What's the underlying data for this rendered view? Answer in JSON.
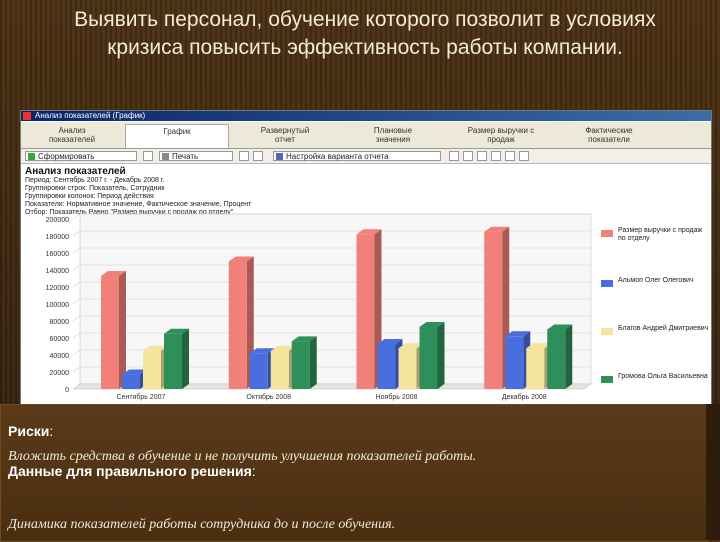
{
  "slide": {
    "title_line1": "Выявить персонал, обучение которого позволит в условиях",
    "title_line2": "кризиса повысить эффективность работы компании."
  },
  "window": {
    "title": "Анализ показателей (График)"
  },
  "tabs": [
    {
      "label": "Анализ\nпоказателей"
    },
    {
      "label": "График"
    },
    {
      "label": "Развернутый\nотчет"
    },
    {
      "label": "Плановые\nзначения"
    },
    {
      "label": "Размер выручки с\nпродаж"
    },
    {
      "label": "Фактические\nпоказатели"
    }
  ],
  "toolbar": {
    "form_label": "Сформировать",
    "print_label": "Печать",
    "settings_label": "Настройка варианта отчета"
  },
  "report": {
    "title": "Анализ показателей",
    "filters": [
      "Период: Сентябрь 2007 г. - Декабрь 2008 г.",
      "Группировки строк: Показатель, Сотрудник",
      "Группировки колонок: Период действия",
      "Показатели: Нормативное значение, Фактическое значение, Процент",
      "Отбор: Показатель Равно \"Размер выручки с продаж по отделу\""
    ]
  },
  "colors": {
    "series1": "#f08078",
    "series2": "#4a6ee0",
    "series3": "#f4e49c",
    "series4": "#2f8f5a"
  },
  "chart_data": {
    "type": "bar",
    "categories": [
      "Сентябрь 2007",
      "Октябрь 2008",
      "Ноябрь 2008",
      "Декабрь 2008"
    ],
    "series": [
      {
        "name": "Размер выручки с продаж по отделу",
        "values": [
          133000,
          150000,
          182000,
          185000
        ]
      },
      {
        "name": "Альмоп Олег Олегович",
        "values": [
          17000,
          42000,
          53000,
          62000
        ]
      },
      {
        "name": "Благов Андрей Дмитриевич",
        "values": [
          45000,
          45000,
          48000,
          48000
        ]
      },
      {
        "name": "Громова Ольга Васильевна",
        "values": [
          65000,
          56000,
          73000,
          70000
        ]
      }
    ],
    "y_ticks": [
      "200000",
      "180000",
      "160000",
      "140000",
      "120000",
      "100000",
      "80000",
      "60000",
      "40000",
      "20000",
      "0"
    ],
    "ylim": [
      0,
      200000
    ],
    "grid": true,
    "legend_position": "right"
  },
  "info": {
    "risks_label": "Риски",
    "risks_text": "Вложить средства в обучение и не получить улучшения показателей работы.",
    "data_label": "Данные для правильного решения",
    "data_text": "Динамика показателей работы сотрудника до и после обучения."
  }
}
